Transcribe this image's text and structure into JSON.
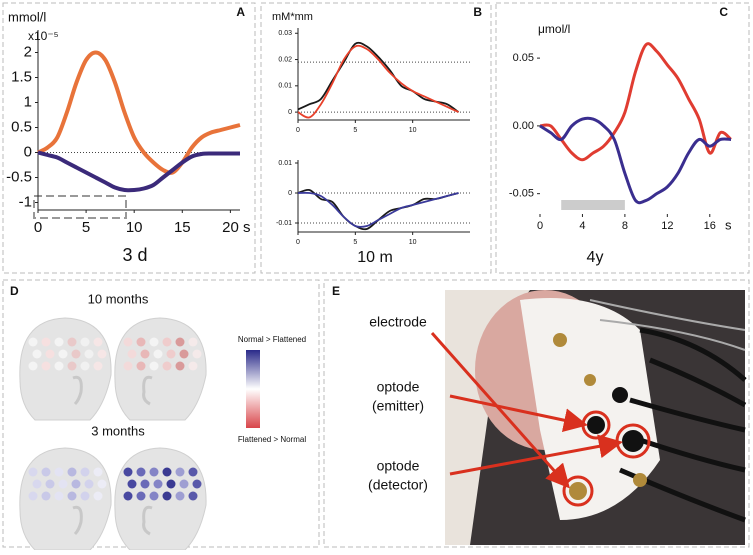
{
  "chart_data": [
    {
      "type": "line",
      "panel_label": "A",
      "y_label": "mmol/l",
      "y_label_exponent": "x10⁻⁵",
      "caption": "3 d",
      "axes": true,
      "x": [
        0,
        1,
        2,
        3,
        4,
        5,
        6,
        7,
        8,
        9,
        10,
        11,
        12,
        13,
        14,
        15,
        16,
        17,
        18,
        19,
        20,
        21
      ],
      "series": [
        {
          "color": "#e8733a",
          "values": [
            0,
            0.1,
            0.3,
            0.8,
            1.4,
            1.85,
            2.0,
            1.85,
            1.4,
            0.8,
            0.3,
            0,
            -0.2,
            -0.35,
            -0.4,
            -0.2,
            0.1,
            0.3,
            0.4,
            0.45,
            0.5,
            0.55
          ]
        },
        {
          "color": "#3b2a7a",
          "values": [
            0,
            -0.05,
            -0.1,
            -0.2,
            -0.3,
            -0.4,
            -0.5,
            -0.6,
            -0.7,
            -0.75,
            -0.75,
            -0.72,
            -0.65,
            -0.5,
            -0.35,
            -0.2,
            -0.08,
            -0.03,
            -0.02,
            -0.02,
            -0.02,
            -0.02
          ]
        }
      ],
      "xlim": [
        0,
        21
      ],
      "ylim": [
        -1.15,
        2.45
      ],
      "xticks": [
        0,
        5,
        10,
        15,
        {
          "value": 20,
          "label": "20 s"
        }
      ],
      "yticks": [
        -1,
        -0.5,
        0,
        0.5,
        1,
        1.5,
        2
      ],
      "reference_lines": [
        0
      ]
    },
    {
      "type": "line",
      "panel_label": "B",
      "y_label": "mM*mm",
      "caption": "10 m",
      "axes": true,
      "x": [
        0,
        1,
        2,
        3,
        4,
        5,
        6,
        7,
        8,
        9,
        10,
        11,
        12,
        13,
        14
      ],
      "series": [
        {
          "color": "#1a1a1a",
          "values": [
            0.001,
            0.003,
            0.005,
            0.012,
            0.019,
            0.026,
            0.025,
            0.021,
            0.016,
            0.01,
            0.008,
            0.005,
            0.004,
            0.003,
            0
          ]
        },
        {
          "color": "#e8402a",
          "values": [
            0,
            -0.002,
            0.003,
            0.011,
            0.02,
            0.025,
            0.024,
            0.02,
            0.015,
            0.011,
            0.008,
            0.006,
            0.004,
            0.002,
            0
          ]
        }
      ],
      "xlim": [
        0,
        15
      ],
      "ylim": [
        -0.003,
        0.032
      ],
      "xticks": [
        0,
        5,
        10
      ],
      "yticks": [
        0,
        0.01,
        0.02,
        0.03
      ],
      "reference_lines": [
        0,
        0.019
      ]
    },
    {
      "type": "line",
      "axes": true,
      "x": [
        0,
        1,
        2,
        3,
        4,
        5,
        6,
        7,
        8,
        9,
        10,
        11,
        12,
        13,
        14
      ],
      "series": [
        {
          "color": "#1a1a1a",
          "values": [
            0,
            0.001,
            -0.002,
            -0.003,
            -0.008,
            -0.011,
            -0.012,
            -0.009,
            -0.006,
            -0.005,
            -0.004,
            -0.002,
            -0.002,
            -0.001,
            0
          ]
        },
        {
          "color": "#3a3a9a",
          "values": [
            0,
            0,
            -0.001,
            -0.004,
            -0.008,
            -0.011,
            -0.011,
            -0.009,
            -0.007,
            -0.005,
            -0.004,
            -0.003,
            -0.002,
            -0.001,
            0
          ]
        }
      ],
      "xlim": [
        0,
        15
      ],
      "ylim": [
        -0.013,
        0.011
      ],
      "xticks": [
        0,
        5,
        10
      ],
      "yticks": [
        -0.01,
        0,
        0.01
      ],
      "reference_lines": [
        0,
        -0.01
      ]
    },
    {
      "type": "line",
      "panel_label": "C",
      "y_label": "μmol/l",
      "caption": "4y",
      "axes": false,
      "x_unit": "s",
      "x": [
        0,
        1,
        2,
        3,
        4,
        5,
        6,
        7,
        8,
        9,
        10,
        11,
        12,
        13,
        14,
        15,
        16,
        17,
        18
      ],
      "series": [
        {
          "color": "#e03c31",
          "values": [
            0,
            0,
            -0.01,
            -0.02,
            -0.025,
            -0.02,
            -0.015,
            -0.005,
            0.01,
            0.04,
            0.06,
            0.055,
            0.045,
            0.035,
            0.02,
            0.005,
            -0.02,
            -0.005,
            -0.01
          ]
        },
        {
          "color": "#3a2e8f",
          "values": [
            0,
            -0.005,
            -0.01,
            0,
            0.005,
            0.005,
            0,
            -0.01,
            -0.035,
            -0.055,
            -0.055,
            -0.05,
            -0.045,
            -0.035,
            -0.02,
            -0.01,
            -0.015,
            -0.01,
            -0.01
          ]
        }
      ],
      "xlim": [
        0,
        18
      ],
      "ylim": [
        -0.065,
        0.07
      ],
      "xticks": [
        0,
        4,
        8,
        12,
        16
      ],
      "yticks": [
        -0.05,
        {
          "value": 0,
          "label": "0.00"
        },
        0.05
      ],
      "shaded_span": [
        2,
        8
      ]
    }
  ],
  "panel_d": {
    "label": "D",
    "titles": [
      "10 months",
      "3 months"
    ],
    "legend": [
      "Normal > Flattened",
      "Flattened > Normal"
    ]
  },
  "panel_e": {
    "label": "E",
    "labels": [
      [
        "electrode"
      ],
      [
        "optode",
        "(emitter)"
      ],
      [
        "optode",
        "(detector)"
      ]
    ]
  }
}
